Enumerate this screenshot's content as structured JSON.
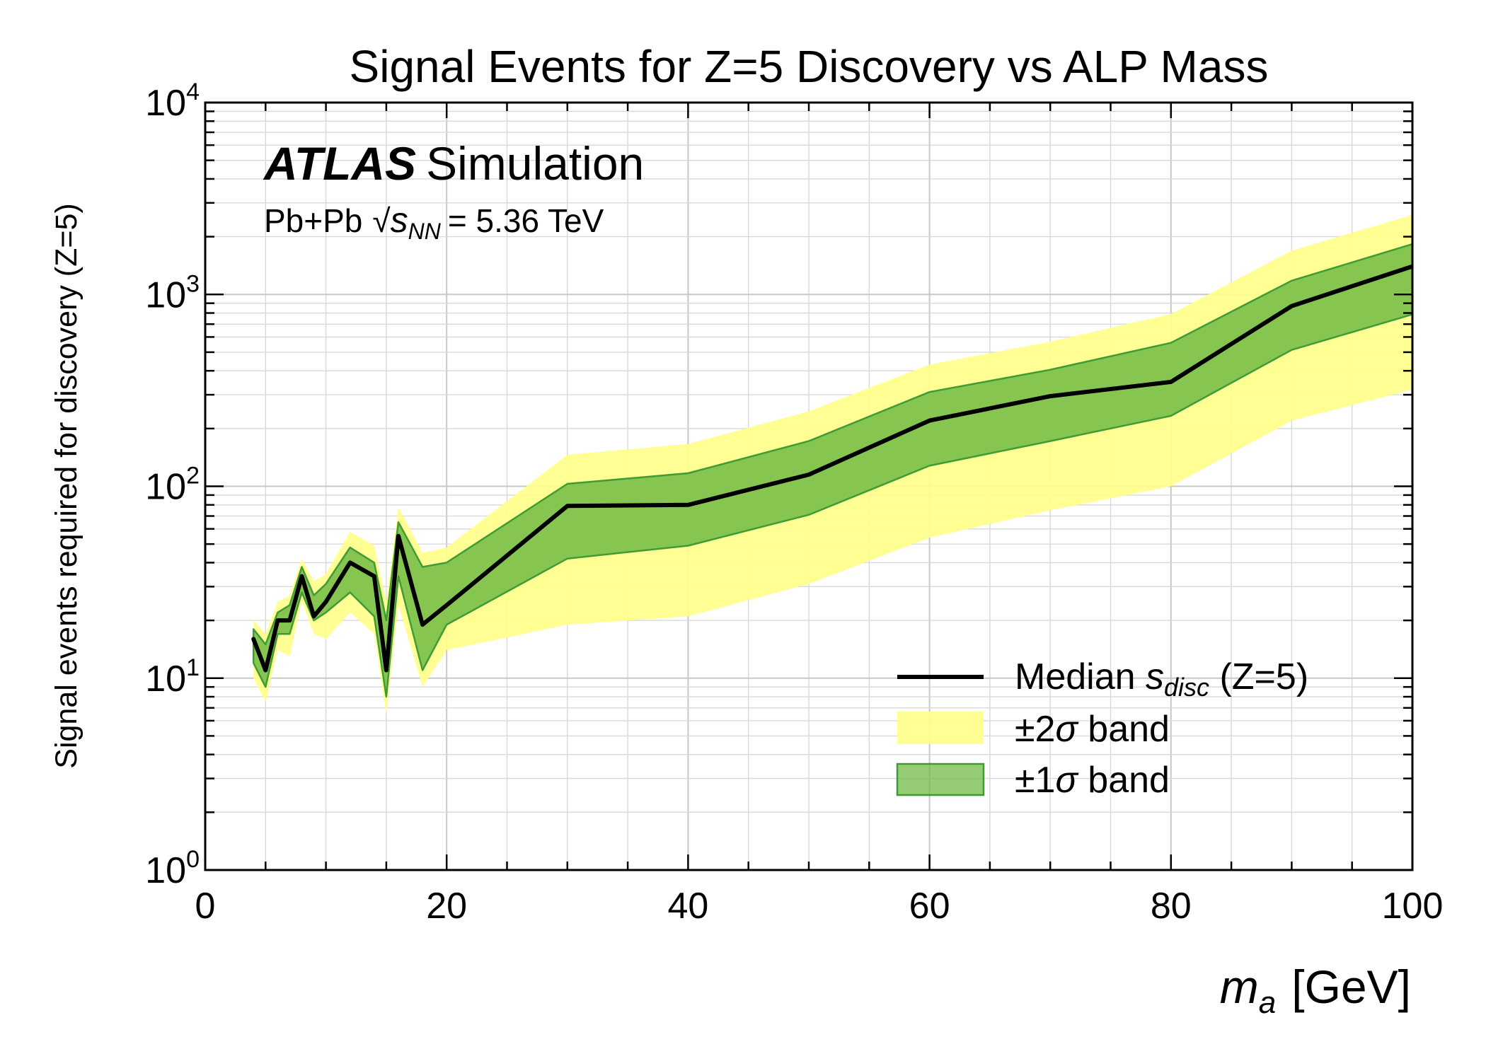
{
  "chart_data": {
    "type": "line",
    "title": "Signal Events for Z=5 Discovery vs ALP Mass",
    "xlabel": {
      "main": "m",
      "sub": "a",
      "unit": "[GeV]"
    },
    "ylabel": "Signal events required for discovery (Z=5)",
    "xlim": [
      0,
      100
    ],
    "ylim": [
      1,
      10000
    ],
    "yscale": "log",
    "grid": true,
    "legend_position": "bottom-right",
    "x_ticks": [
      "0",
      "20",
      "40",
      "60",
      "80",
      "100"
    ],
    "y_ticks": [
      {
        "base": "10",
        "exp": "0"
      },
      {
        "base": "10",
        "exp": "1"
      },
      {
        "base": "10",
        "exp": "2"
      },
      {
        "base": "10",
        "exp": "3"
      },
      {
        "base": "10",
        "exp": "4"
      }
    ],
    "annotation": {
      "atlas": "ATLAS",
      "simulation": "Simulation",
      "system": "Pb+Pb",
      "sqrt": "√",
      "s": "s",
      "nn": "NN",
      "energy": "= 5.36 TeV"
    },
    "legend": {
      "median": {
        "text": "Median ",
        "s": "s",
        "sub": "disc",
        "suffix": " (Z=5)"
      },
      "band2": {
        "pm": "±2",
        "sigma": "σ",
        "suffix": " band"
      },
      "band1": {
        "pm": "±1",
        "sigma": "σ",
        "suffix": " band"
      }
    },
    "colors": {
      "median": "#000000",
      "band1_fill": "#72bb45",
      "band1_edge": "#3f9c35",
      "band2_fill": "#ffff88"
    },
    "x": [
      4,
      5,
      6,
      7,
      8,
      9,
      10,
      12,
      14,
      15,
      16,
      18,
      20,
      30,
      40,
      50,
      60,
      70,
      80,
      90,
      100
    ],
    "series": [
      {
        "name": "Median s_disc (Z=5)",
        "role": "median",
        "values": [
          16,
          11,
          20,
          20,
          34,
          21,
          25,
          40,
          34,
          11,
          55,
          19,
          24,
          79,
          80,
          115,
          220,
          295,
          350,
          870,
          1400
        ]
      },
      {
        "name": "±1σ band lower",
        "role": "band1_low",
        "values": [
          12,
          9,
          17,
          17,
          28,
          20,
          22,
          28,
          21,
          8,
          34,
          11,
          19,
          42,
          49,
          71,
          128,
          172,
          233,
          514,
          787
        ]
      },
      {
        "name": "±1σ band upper",
        "role": "band1_high",
        "values": [
          18,
          15,
          22,
          24,
          38,
          27,
          31,
          48,
          40,
          20,
          65,
          38,
          40,
          103,
          117,
          172,
          310,
          405,
          560,
          1180,
          1830
        ]
      },
      {
        "name": "±2σ band lower",
        "role": "band2_low",
        "values": [
          10,
          7.5,
          14,
          13,
          25,
          17,
          16,
          22,
          17,
          6.5,
          24,
          9,
          14,
          19,
          21,
          31,
          54,
          75,
          100,
          220,
          319
        ]
      },
      {
        "name": "±2σ band upper",
        "role": "band2_high",
        "values": [
          20,
          17,
          25,
          27,
          42,
          32,
          35,
          58,
          49,
          25,
          78,
          45,
          48,
          146,
          166,
          246,
          431,
          567,
          790,
          1690,
          2600
        ]
      }
    ]
  }
}
